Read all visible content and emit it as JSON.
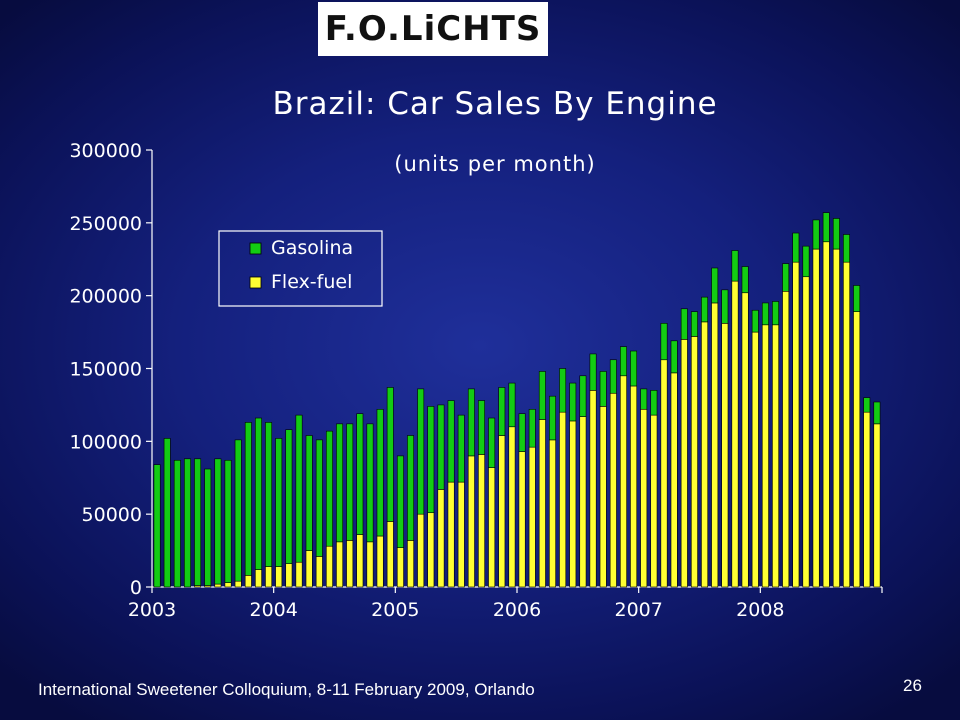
{
  "logo": {
    "text": "F.O.LiCHTS"
  },
  "slide": {
    "title": "Brazil:  Car Sales By Engine",
    "footer": "International Sweetener Colloquium, 8-11 February 2009, Orlando",
    "page_number": "26"
  },
  "colors": {
    "gasolina": "#13cc13",
    "flex_fuel": "#ffff33",
    "text": "#ffffff"
  },
  "chart_data": {
    "type": "bar",
    "stacked": true,
    "title": "",
    "subtitle": "(units per month)",
    "xlabel": "",
    "ylabel": "",
    "ylim": [
      0,
      300000
    ],
    "yticks": [
      0,
      50000,
      100000,
      150000,
      200000,
      250000,
      300000
    ],
    "year_labels": [
      "2003",
      "2004",
      "2005",
      "2006",
      "2007",
      "2008"
    ],
    "legend_position": "upper-left",
    "legend_order": [
      "Gasolina",
      "Flex-fuel"
    ],
    "categories": [
      "2003-01",
      "2003-02",
      "2003-03",
      "2003-04",
      "2003-05",
      "2003-06",
      "2003-07",
      "2003-08",
      "2003-09",
      "2003-10",
      "2003-11",
      "2003-12",
      "2004-01",
      "2004-02",
      "2004-03",
      "2004-04",
      "2004-05",
      "2004-06",
      "2004-07",
      "2004-08",
      "2004-09",
      "2004-10",
      "2004-11",
      "2004-12",
      "2005-01",
      "2005-02",
      "2005-03",
      "2005-04",
      "2005-05",
      "2005-06",
      "2005-07",
      "2005-08",
      "2005-09",
      "2005-10",
      "2005-11",
      "2005-12",
      "2006-01",
      "2006-02",
      "2006-03",
      "2006-04",
      "2006-05",
      "2006-06",
      "2006-07",
      "2006-08",
      "2006-09",
      "2006-10",
      "2006-11",
      "2006-12",
      "2007-01",
      "2007-02",
      "2007-03",
      "2007-04",
      "2007-05",
      "2007-06",
      "2007-07",
      "2007-08",
      "2007-09",
      "2007-10",
      "2007-11",
      "2007-12",
      "2008-01",
      "2008-02",
      "2008-03",
      "2008-04",
      "2008-05",
      "2008-06",
      "2008-07",
      "2008-08",
      "2008-09",
      "2008-10",
      "2008-11",
      "2008-12"
    ],
    "series": [
      {
        "name": "Flex-fuel",
        "values": [
          0,
          0,
          0,
          0,
          1000,
          1000,
          2000,
          3000,
          4000,
          8000,
          12000,
          14000,
          14000,
          16000,
          17000,
          25000,
          21000,
          28000,
          31000,
          32000,
          36000,
          31000,
          35000,
          45000,
          27000,
          32000,
          50000,
          51000,
          67000,
          72000,
          72000,
          90000,
          91000,
          82000,
          104000,
          110000,
          93000,
          96000,
          115000,
          101000,
          120000,
          114000,
          117000,
          135000,
          124000,
          133000,
          145000,
          138000,
          122000,
          118000,
          156000,
          147000,
          170000,
          172000,
          182000,
          195000,
          181000,
          210000,
          202000,
          175000,
          180000,
          180000,
          203000,
          223000,
          213000,
          232000,
          237000,
          232000,
          223000,
          189000,
          120000,
          112000
        ]
      },
      {
        "name": "Gasolina",
        "values": [
          84000,
          102000,
          87000,
          88000,
          87000,
          80000,
          86000,
          84000,
          97000,
          105000,
          104000,
          99000,
          88000,
          92000,
          101000,
          79000,
          80000,
          79000,
          81000,
          80000,
          83000,
          81000,
          87000,
          92000,
          63000,
          72000,
          86000,
          73000,
          58000,
          56000,
          46000,
          46000,
          37000,
          34000,
          33000,
          30000,
          26000,
          26000,
          33000,
          30000,
          30000,
          26000,
          28000,
          25000,
          24000,
          23000,
          20000,
          24000,
          14000,
          17000,
          25000,
          22000,
          21000,
          17000,
          17000,
          24000,
          23000,
          21000,
          18000,
          15000,
          15000,
          16000,
          19000,
          20000,
          21000,
          20000,
          20000,
          21000,
          19000,
          18000,
          10000,
          15000
        ]
      }
    ]
  }
}
